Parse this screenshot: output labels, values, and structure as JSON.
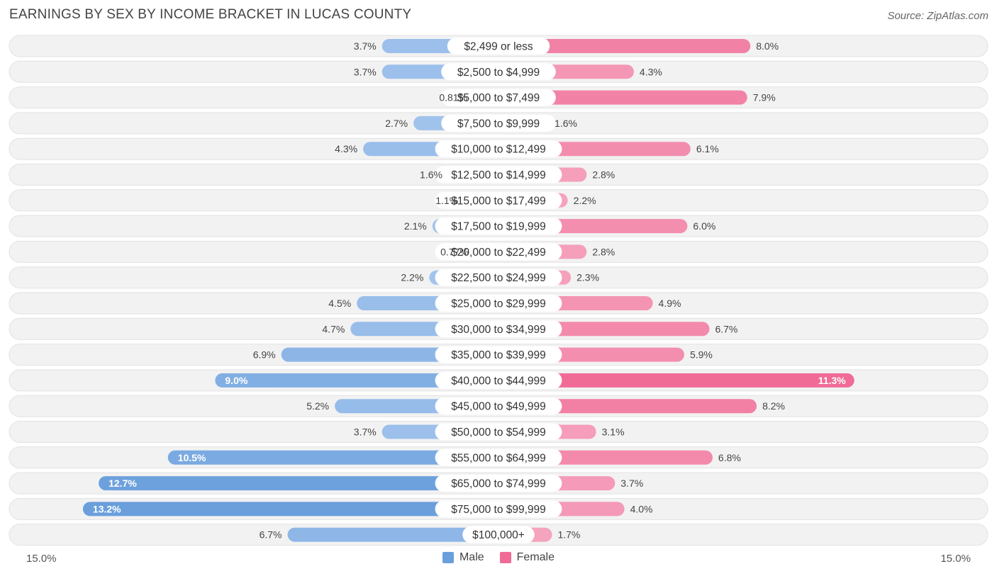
{
  "header": {
    "title": "EARNINGS BY SEX BY INCOME BRACKET IN LUCAS COUNTY",
    "source": "Source: ZipAtlas.com"
  },
  "legend": {
    "male_label": "Male",
    "female_label": "Female"
  },
  "axis": {
    "left_label": "15.0%",
    "right_label": "15.0%"
  },
  "colors": {
    "male_light": "#a8c8ee",
    "male_dark": "#6a9fdc",
    "female_light": "#f6a9c2",
    "female_dark": "#f06b96",
    "row_bg": "#f2f2f2",
    "row_border": "#e2e2e2"
  },
  "chart_data": {
    "type": "bar",
    "orientation": "horizontal-diverging",
    "title": "EARNINGS BY SEX BY INCOME BRACKET IN LUCAS COUNTY",
    "xlim": [
      -15,
      15
    ],
    "categories": [
      "$2,499 or less",
      "$2,500 to $4,999",
      "$5,000 to $7,499",
      "$7,500 to $9,999",
      "$10,000 to $12,499",
      "$12,500 to $14,999",
      "$15,000 to $17,499",
      "$17,500 to $19,999",
      "$20,000 to $22,499",
      "$22,500 to $24,999",
      "$25,000 to $29,999",
      "$30,000 to $34,999",
      "$35,000 to $39,999",
      "$40,000 to $44,999",
      "$45,000 to $49,999",
      "$50,000 to $54,999",
      "$55,000 to $64,999",
      "$65,000 to $74,999",
      "$75,000 to $99,999",
      "$100,000+"
    ],
    "series": [
      {
        "name": "Male",
        "values": [
          3.7,
          3.7,
          0.81,
          2.7,
          4.3,
          1.6,
          1.1,
          2.1,
          0.77,
          2.2,
          4.5,
          4.7,
          6.9,
          9.0,
          5.2,
          3.7,
          10.5,
          12.7,
          13.2,
          6.7
        ],
        "labels": [
          "3.7%",
          "3.7%",
          "0.81%",
          "2.7%",
          "4.3%",
          "1.6%",
          "1.1%",
          "2.1%",
          "0.77%",
          "2.2%",
          "4.5%",
          "4.7%",
          "6.9%",
          "9.0%",
          "5.2%",
          "3.7%",
          "10.5%",
          "12.7%",
          "13.2%",
          "6.7%"
        ]
      },
      {
        "name": "Female",
        "values": [
          8.0,
          4.3,
          7.9,
          1.6,
          6.1,
          2.8,
          2.2,
          6.0,
          2.8,
          2.3,
          4.9,
          6.7,
          5.9,
          11.3,
          8.2,
          3.1,
          6.8,
          3.7,
          4.0,
          1.7
        ],
        "labels": [
          "8.0%",
          "4.3%",
          "7.9%",
          "1.6%",
          "6.1%",
          "2.8%",
          "2.2%",
          "6.0%",
          "2.8%",
          "2.3%",
          "4.9%",
          "6.7%",
          "5.9%",
          "11.3%",
          "8.2%",
          "3.1%",
          "6.8%",
          "3.7%",
          "4.0%",
          "1.7%"
        ]
      }
    ]
  }
}
